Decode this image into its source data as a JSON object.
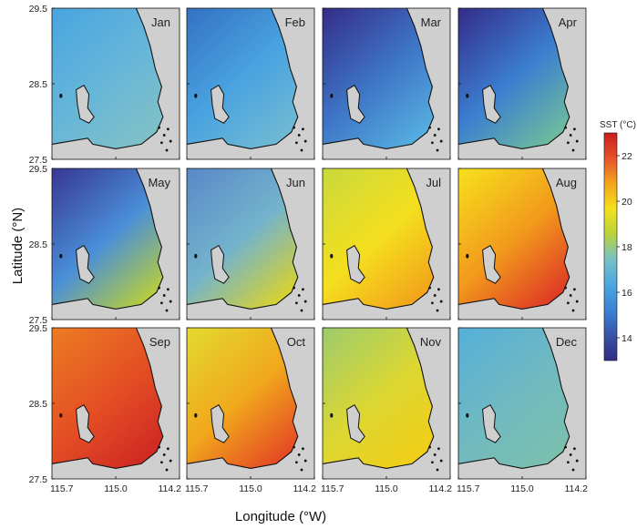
{
  "chart_data": {
    "type": "heatmap",
    "panels": [
      {
        "month": "Jan",
        "color_north": "#4aa5df",
        "color_mid": "#66b6d9",
        "color_coast": "#7fc0c6"
      },
      {
        "month": "Feb",
        "color_north": "#3474c4",
        "color_mid": "#4aa3e0",
        "color_coast": "#6fb9d3"
      },
      {
        "month": "Mar",
        "color_north": "#352f8c",
        "color_mid": "#3e76c6",
        "color_coast": "#55ade0"
      },
      {
        "month": "Apr",
        "color_north": "#342f8c",
        "color_mid": "#3b7fd0",
        "color_coast": "#6dbb9e"
      },
      {
        "month": "May",
        "color_north": "#383a96",
        "color_mid": "#4a8fd8",
        "color_coast": "#b5cc3e"
      },
      {
        "month": "Jun",
        "color_north": "#5a8ac8",
        "color_mid": "#74b3cc",
        "color_coast": "#d6d230"
      },
      {
        "month": "Jul",
        "color_north": "#cbd93a",
        "color_mid": "#f4df1e",
        "color_coast": "#f3a41a"
      },
      {
        "month": "Aug",
        "color_north": "#f6de1c",
        "color_mid": "#f29a1c",
        "color_coast": "#df3b25"
      },
      {
        "month": "Sep",
        "color_north": "#ec7a22",
        "color_mid": "#e44f24",
        "color_coast": "#cf2a23"
      },
      {
        "month": "Oct",
        "color_north": "#e3d82e",
        "color_mid": "#f1a81c",
        "color_coast": "#e54a24"
      },
      {
        "month": "Nov",
        "color_north": "#9fcc6a",
        "color_mid": "#dcd732",
        "color_coast": "#f1ce18"
      },
      {
        "month": "Dec",
        "color_north": "#56b0d8",
        "color_mid": "#70b9c0",
        "color_coast": "#7bbfae"
      }
    ],
    "xlabel": "Longitude (°W)",
    "ylabel": "Latitude (°N)",
    "x_ticks": [
      "115.7",
      "115.0",
      "114.2"
    ],
    "y_ticks": [
      "29.5",
      "28.5",
      "27.5"
    ],
    "colorbar": {
      "title": "SST (°C)",
      "range": [
        13,
        23
      ],
      "ticks": [
        "14",
        "16",
        "18",
        "20",
        "22"
      ],
      "colors": [
        "#332c85",
        "#3753a6",
        "#3b83d4",
        "#4aa7df",
        "#79c0c6",
        "#b9d33a",
        "#f4e11c",
        "#f2a51c",
        "#e6522a",
        "#c81e20"
      ]
    },
    "land_color": "#cfcfcf"
  }
}
